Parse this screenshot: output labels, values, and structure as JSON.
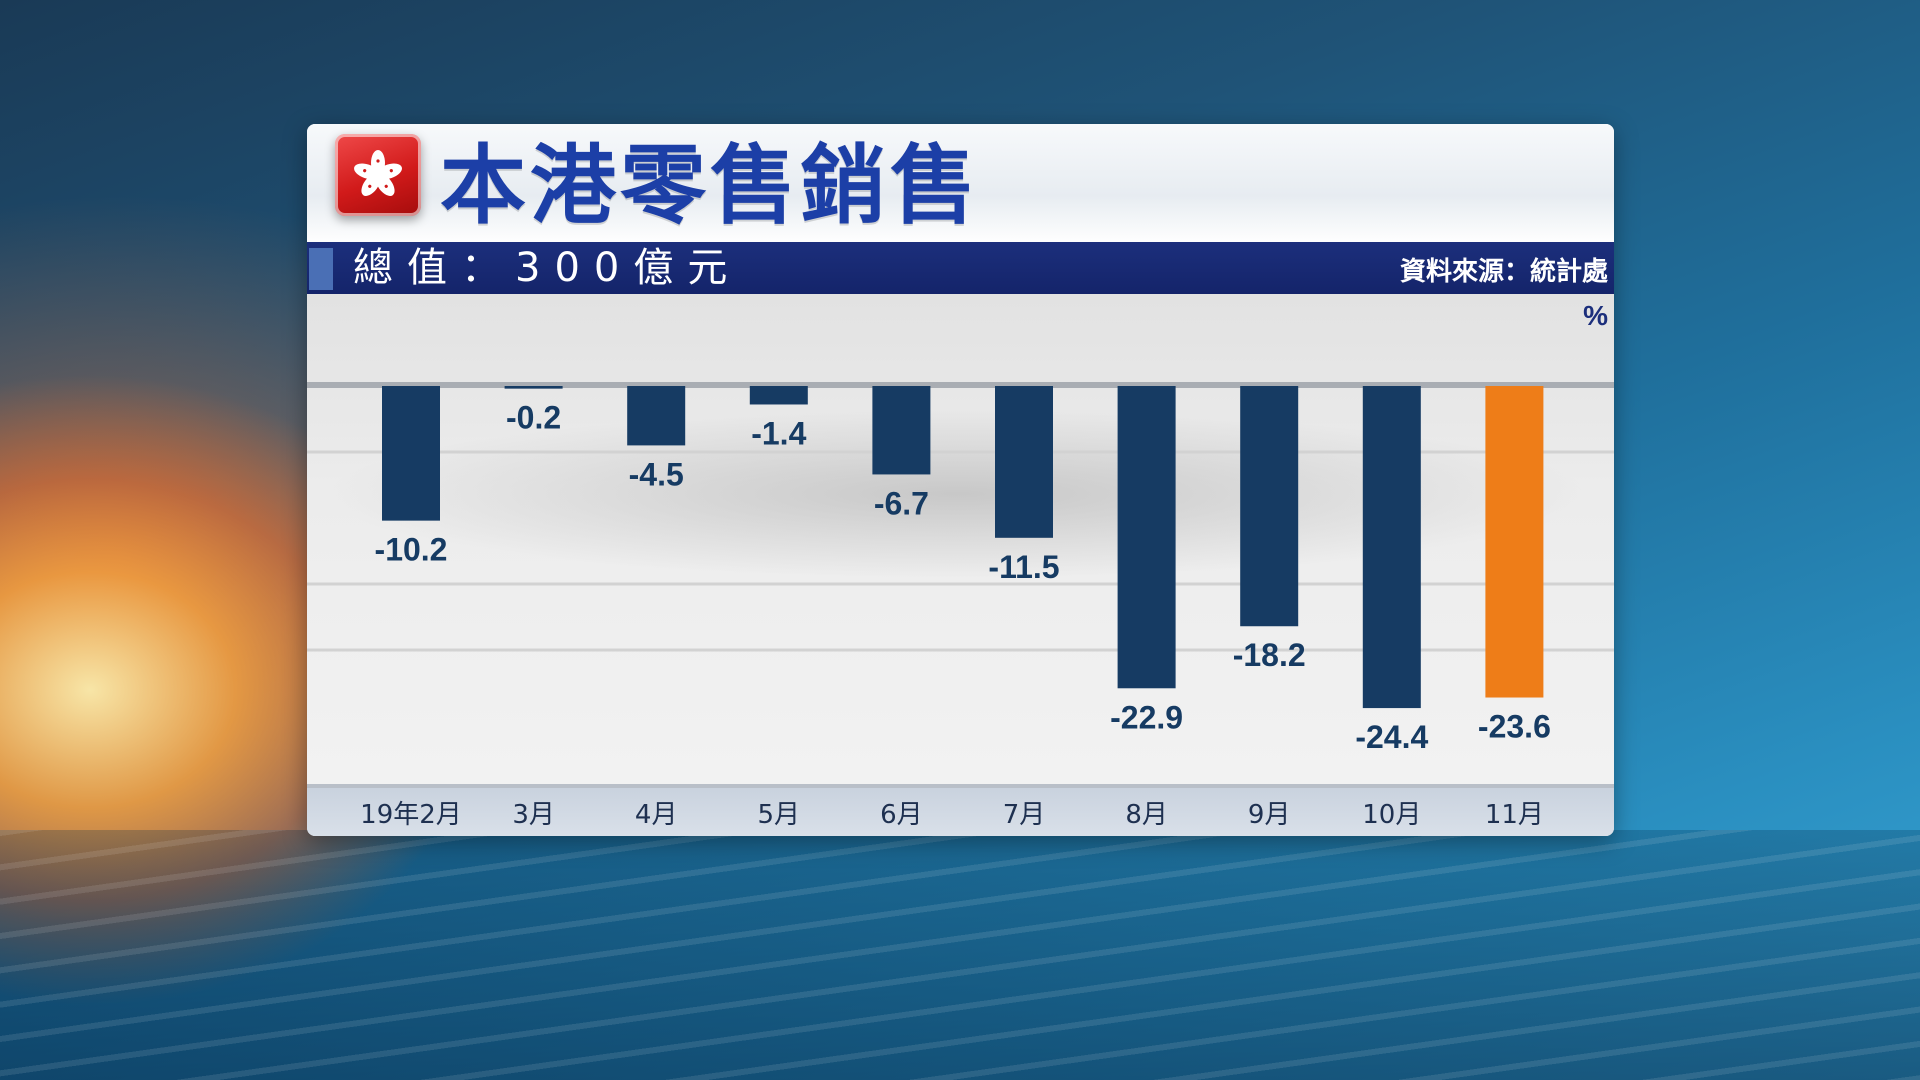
{
  "header": {
    "title": "本港零售銷售",
    "subtitle": "總值：300億元",
    "source": "資料來源：統計處",
    "unit": "%"
  },
  "logo": {
    "icon": "hk-bauhinia-flag-icon",
    "color": "#d11a1a"
  },
  "colors": {
    "bar_default": "#163b63",
    "bar_highlight": "#ee7d18",
    "label": "#163b63",
    "title": "#1c3fa7",
    "subtitle_bar": "#1c2f7c"
  },
  "chart_data": {
    "type": "bar",
    "title": "本港零售銷售",
    "subtitle": "總值：300億元",
    "ylabel": "%",
    "categories": [
      "19年2月",
      "3月",
      "4月",
      "5月",
      "6月",
      "7月",
      "8月",
      "9月",
      "10月",
      "11月"
    ],
    "values": [
      -10.2,
      -0.2,
      -4.5,
      -1.4,
      -6.7,
      -11.5,
      -22.9,
      -18.2,
      -24.4,
      -23.6
    ],
    "value_labels": [
      "-10.2",
      "-0.2",
      "-4.5",
      "-1.4",
      "-6.7",
      "-11.5",
      "-22.9",
      "-18.2",
      "-24.4",
      "-23.6"
    ],
    "highlight_index": 9,
    "ylim": [
      -28,
      0
    ],
    "grid": true,
    "legend": "none"
  }
}
